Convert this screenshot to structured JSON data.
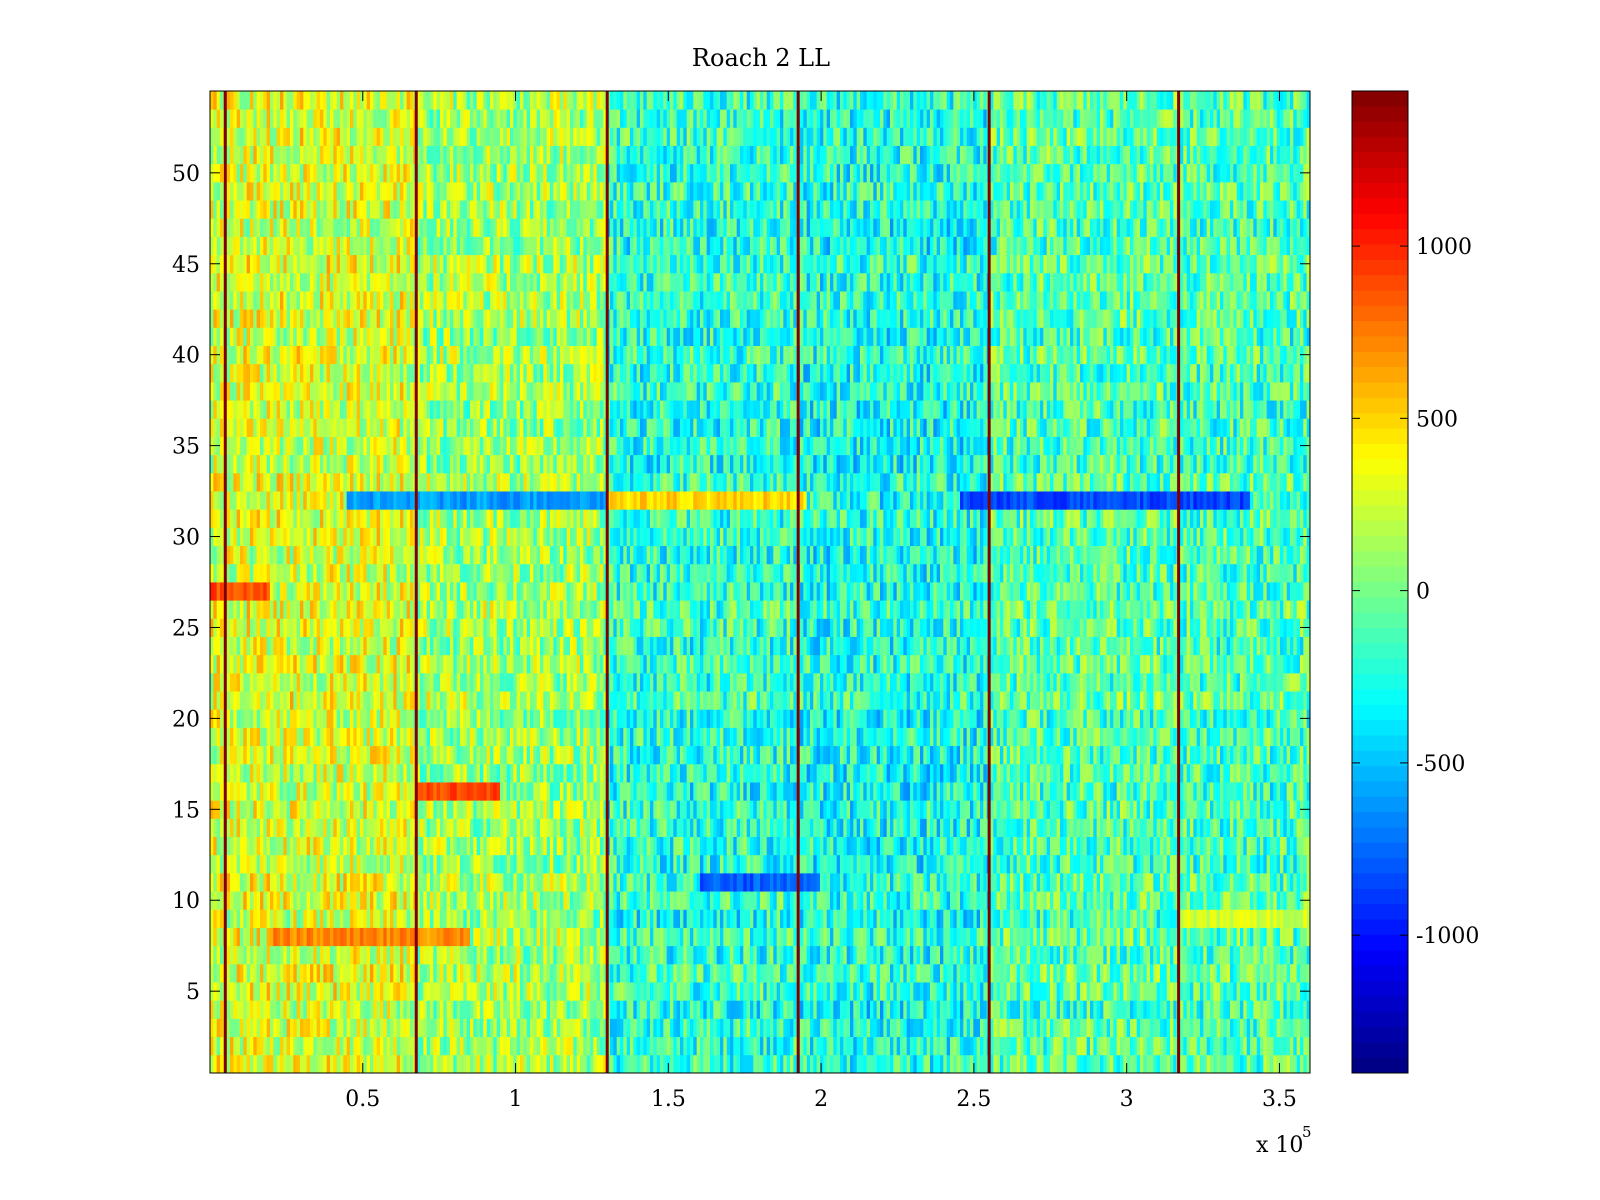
{
  "chart_data": {
    "type": "heatmap",
    "title": "Roach 2 LL",
    "xlabel": "",
    "ylabel": "",
    "x_exponent_label": "x 10",
    "x_exponent_power": "5",
    "x_scale": 100000,
    "xlim": [
      0,
      3.6
    ],
    "ylim": [
      0.5,
      54.5
    ],
    "rows": 54,
    "x_ticks": [
      {
        "value": 0.5,
        "label": "0.5"
      },
      {
        "value": 1,
        "label": "1"
      },
      {
        "value": 1.5,
        "label": "1.5"
      },
      {
        "value": 2,
        "label": "2"
      },
      {
        "value": 2.5,
        "label": "2.5"
      },
      {
        "value": 3,
        "label": "3"
      },
      {
        "value": 3.5,
        "label": "3.5"
      }
    ],
    "y_ticks": [
      {
        "value": 5,
        "label": "5"
      },
      {
        "value": 10,
        "label": "10"
      },
      {
        "value": 15,
        "label": "15"
      },
      {
        "value": 20,
        "label": "20"
      },
      {
        "value": 25,
        "label": "25"
      },
      {
        "value": 30,
        "label": "30"
      },
      {
        "value": 35,
        "label": "35"
      },
      {
        "value": 40,
        "label": "40"
      },
      {
        "value": 45,
        "label": "45"
      },
      {
        "value": 50,
        "label": "50"
      }
    ],
    "colorbar": {
      "colormap": "jet",
      "clim": [
        -1400,
        1450
      ],
      "ticks": [
        {
          "value": 1000,
          "label": "1000"
        },
        {
          "value": 500,
          "label": "500"
        },
        {
          "value": 0,
          "label": "0"
        },
        {
          "value": -500,
          "label": "-500"
        },
        {
          "value": -1000,
          "label": "-1000"
        }
      ]
    },
    "vertical_spike_lines_x": [
      0.05,
      0.675,
      1.3,
      1.925,
      2.55,
      3.17
    ],
    "spike_value": 1450,
    "region_trends": [
      {
        "x_from": 0.0,
        "x_to": 0.675,
        "mean_value": 280
      },
      {
        "x_from": 0.675,
        "x_to": 1.3,
        "mean_value": 120
      },
      {
        "x_from": 1.3,
        "x_to": 1.925,
        "mean_value": -200
      },
      {
        "x_from": 1.925,
        "x_to": 2.55,
        "mean_value": -250
      },
      {
        "x_from": 2.55,
        "x_to": 3.17,
        "mean_value": -100
      },
      {
        "x_from": 3.17,
        "x_to": 3.6,
        "mean_value": -120
      }
    ],
    "row_anomalies": [
      {
        "row": 32,
        "x_from": 0.45,
        "x_to": 1.3,
        "value": -600
      },
      {
        "row": 32,
        "x_from": 1.3,
        "x_to": 1.95,
        "value": 500
      },
      {
        "row": 32,
        "x_from": 2.45,
        "x_to": 3.4,
        "value": -850
      },
      {
        "row": 27,
        "x_from": 0.0,
        "x_to": 0.2,
        "value": 900
      },
      {
        "row": 8,
        "x_from": 0.2,
        "x_to": 0.85,
        "value": 700
      },
      {
        "row": 16,
        "x_from": 0.68,
        "x_to": 0.95,
        "value": 900
      },
      {
        "row": 11,
        "x_from": 1.6,
        "x_to": 2.0,
        "value": -800
      },
      {
        "row": 9,
        "x_from": 3.17,
        "x_to": 3.6,
        "value": 250
      }
    ],
    "colors": {
      "axis": "#000000",
      "background": "#ffffff"
    }
  }
}
